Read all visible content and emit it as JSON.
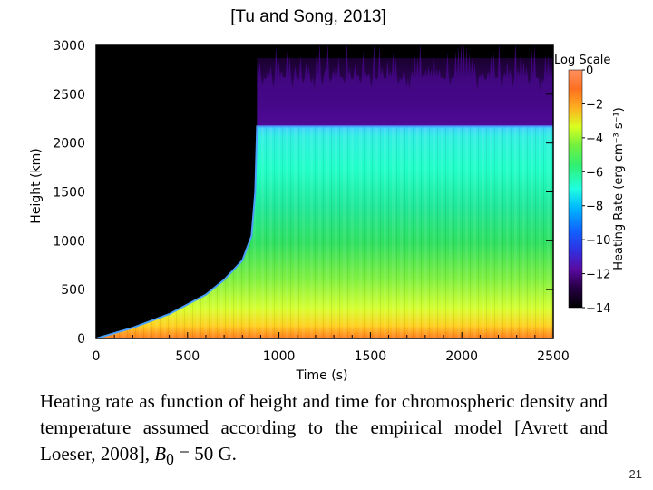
{
  "slide": {
    "citation": "[Tu and Song, 2013]",
    "caption_main": "Heating rate as function of height and time for chromospheric density and temperature assumed according to the empirical model [Avrett and Loeser, 2008], ",
    "caption_symbol": "B",
    "caption_subscript": "0",
    "caption_tail": " = 50 G.",
    "page_number": "21"
  },
  "chart_data": {
    "type": "heatmap",
    "xlabel": "Time (s)",
    "ylabel": "Height (km)",
    "xlim": [
      0,
      2500
    ],
    "ylim": [
      0,
      3000
    ],
    "x_ticks": [
      0,
      500,
      1000,
      1500,
      2000,
      2500
    ],
    "y_ticks": [
      0,
      500,
      1000,
      1500,
      2000,
      2500,
      3000
    ],
    "background_color": "#000000",
    "colorbar": {
      "title": "Log Scale",
      "label": "Heating Rate (erg cm⁻³ s⁻¹)",
      "range": [
        -14,
        0
      ],
      "ticks": [
        "0",
        "−2",
        "−4",
        "−6",
        "−8",
        "−10",
        "−12",
        "−14"
      ],
      "colors": [
        "#000000",
        "#400070",
        "#8010b0",
        "#3040e0",
        "#00a0ff",
        "#20ffd0",
        "#30f060",
        "#90ff30",
        "#e8ff20",
        "#ffc020",
        "#ff7020",
        "#ff9050"
      ]
    },
    "transition_boundary": {
      "description_values_time_s": [
        0,
        200,
        400,
        600,
        700,
        800,
        850,
        870,
        880
      ],
      "description_values_height_km": [
        0,
        110,
        250,
        450,
        600,
        800,
        1050,
        1500,
        2170
      ]
    },
    "transition_region_height_km": 2170,
    "values_near_bottom": "-2 to -4",
    "values_mid_column": "-4 to -6",
    "values_above_transition": "-10 to -12"
  }
}
